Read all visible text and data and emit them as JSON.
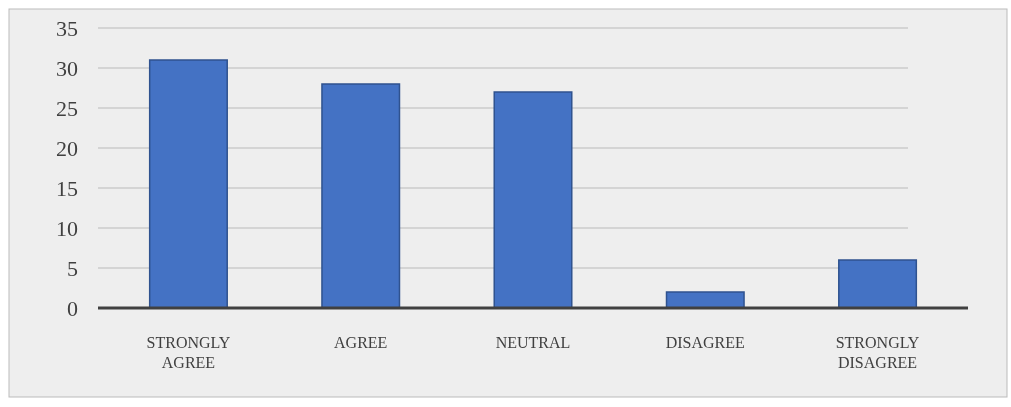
{
  "chart_data": {
    "type": "bar",
    "categories": [
      "STRONGLY AGREE",
      "AGREE",
      "NEUTRAL",
      "DISAGREE",
      "STRONGLY DISAGREE"
    ],
    "values": [
      31,
      28,
      27,
      2,
      6
    ],
    "color": "#4472c4",
    "ylim": [
      0,
      35
    ],
    "yticks": [
      0,
      5,
      10,
      15,
      20,
      25,
      30,
      35
    ],
    "grid": "y"
  }
}
